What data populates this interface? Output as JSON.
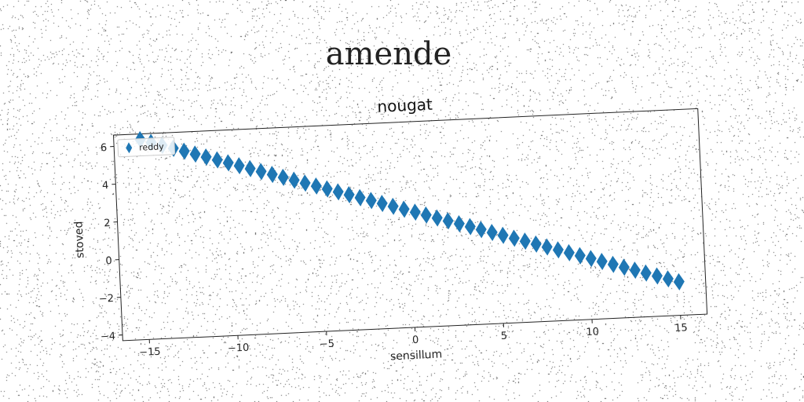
{
  "figure": {
    "suptitle": "amende"
  },
  "chart_data": {
    "type": "scatter",
    "title": "nougat",
    "xlabel": "sensillum",
    "ylabel": "stoved",
    "xlim": [
      -16.5,
      16.5
    ],
    "ylim": [
      -4.3,
      6.6
    ],
    "xticks": [
      -15,
      -10,
      -5,
      0,
      5,
      10,
      15
    ],
    "yticks": [
      -4,
      -2,
      0,
      2,
      4,
      6
    ],
    "grid": false,
    "legend_position": "top-left",
    "series": [
      {
        "name": "reddy",
        "marker": "diamond",
        "color": "#1f77b4",
        "x": [
          -15.0,
          -14.39,
          -13.78,
          -13.16,
          -12.55,
          -11.94,
          -11.33,
          -10.71,
          -10.1,
          -9.49,
          -8.88,
          -8.27,
          -7.65,
          -7.04,
          -6.43,
          -5.82,
          -5.2,
          -4.59,
          -3.98,
          -3.37,
          -2.76,
          -2.14,
          -1.53,
          -0.92,
          -0.31,
          0.31,
          0.92,
          1.53,
          2.14,
          2.76,
          3.37,
          3.98,
          4.59,
          5.2,
          5.82,
          6.43,
          7.04,
          7.65,
          8.27,
          8.88,
          9.49,
          10.1,
          10.71,
          11.33,
          11.94,
          12.55,
          13.16,
          13.78,
          14.39,
          15.0
        ],
        "y": [
          6.3,
          6.12,
          5.94,
          5.76,
          5.58,
          5.4,
          5.22,
          5.04,
          4.86,
          4.68,
          4.5,
          4.32,
          4.14,
          3.96,
          3.78,
          3.6,
          3.42,
          3.24,
          3.06,
          2.88,
          2.7,
          2.52,
          2.34,
          2.16,
          1.98,
          1.8,
          1.62,
          1.44,
          1.26,
          1.08,
          0.9,
          0.72,
          0.54,
          0.36,
          0.18,
          0.0,
          -0.18,
          -0.36,
          -0.54,
          -0.72,
          -0.9,
          -1.08,
          -1.26,
          -1.44,
          -1.62,
          -1.8,
          -1.98,
          -2.16,
          -2.34,
          -2.52
        ]
      }
    ]
  }
}
